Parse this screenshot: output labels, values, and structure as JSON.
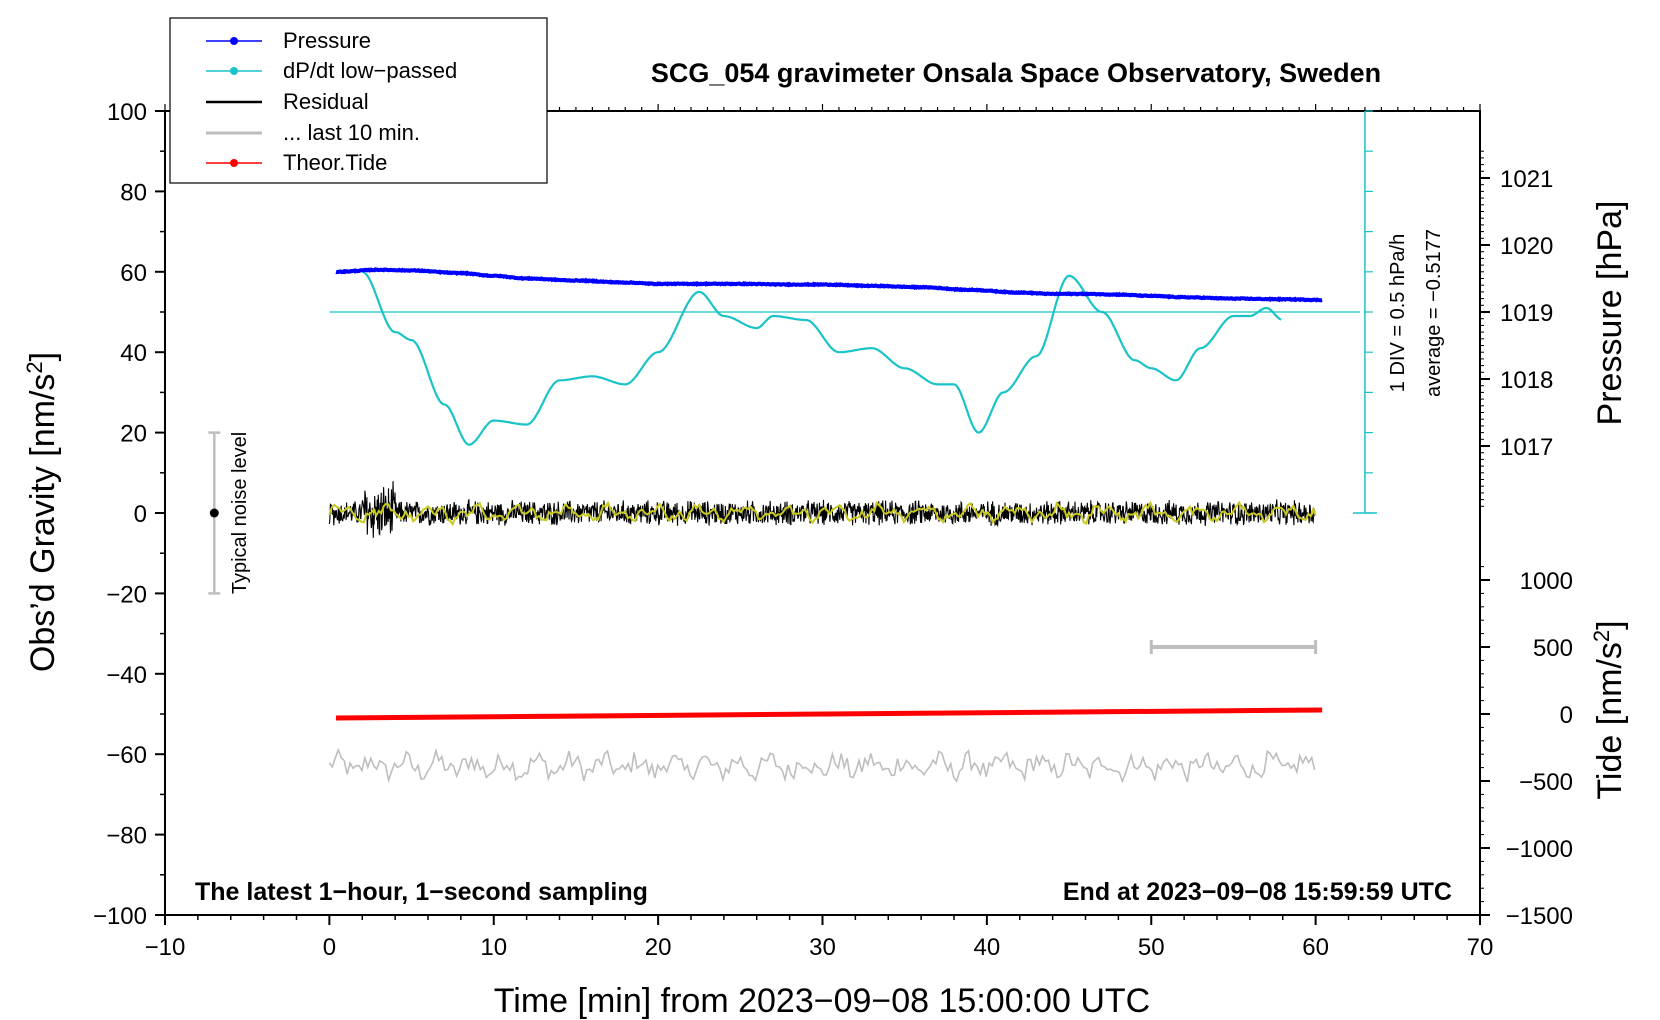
{
  "chart_data": {
    "type": "line",
    "title": "SCG_054 gravimeter Onsala Space Observatory, Sweden",
    "xlabel": "Time [min] from 2023−09−08 15:00:00 UTC",
    "ylabel": "Obs’d Gravity [nm/s²]",
    "ylabel_main": "Obs’d Gravity [nm/s",
    "ylabel_sup": "2",
    "ylabel_end": "]",
    "xlim": [
      -10,
      70
    ],
    "ylim": [
      -100,
      100
    ],
    "x_ticks": [
      -10,
      0,
      10,
      20,
      30,
      40,
      50,
      60,
      70
    ],
    "x_tick_labels": [
      "−10",
      "0",
      "10",
      "20",
      "30",
      "40",
      "50",
      "60",
      "70"
    ],
    "y_ticks": [
      100,
      80,
      60,
      40,
      20,
      0,
      -20,
      -40,
      -60,
      -80,
      -100
    ],
    "y_tick_labels": [
      "100",
      "80",
      "60",
      "40",
      "20",
      "0",
      "−20",
      "−40",
      "−60",
      "−80",
      "−100"
    ],
    "pressure_axis": {
      "label": "Pressure [hPa]",
      "ticks": [
        1021,
        1020,
        1019,
        1018,
        1017
      ],
      "tick_labels": [
        "1021",
        "1020",
        "1019",
        "1018",
        "1017"
      ]
    },
    "tide_axis": {
      "label_main": "Tide [nm/s",
      "label_sup": "2",
      "label_end": "]",
      "ticks": [
        1000,
        500,
        0,
        -500,
        -1000,
        -1500
      ],
      "tick_labels": [
        "1000",
        "500",
        "0",
        "−500",
        "−1000",
        "−1500"
      ]
    },
    "series": [
      {
        "name": "Pressure",
        "color": "#0000ff",
        "units": "hPa",
        "x": [
          0.4,
          3,
          5,
          8,
          10,
          12,
          15,
          18,
          20,
          22,
          25,
          28,
          30,
          33,
          36,
          39,
          42,
          44,
          46,
          48,
          50,
          52,
          55,
          58,
          60.4
        ],
        "values": [
          1019.6,
          1019.63,
          1019.62,
          1019.58,
          1019.54,
          1019.5,
          1019.47,
          1019.44,
          1019.42,
          1019.42,
          1019.42,
          1019.41,
          1019.41,
          1019.39,
          1019.37,
          1019.33,
          1019.29,
          1019.27,
          1019.27,
          1019.26,
          1019.24,
          1019.22,
          1019.2,
          1019.19,
          1019.18
        ]
      },
      {
        "name": "dP/dt low−passed",
        "color": "#19c3c8",
        "units": "nm/s² (plotted)",
        "x": [
          2,
          4,
          5,
          7,
          8.5,
          10,
          12,
          14,
          16,
          18,
          20,
          22.5,
          24,
          26,
          27,
          29,
          31,
          33,
          35,
          37,
          38,
          39.5,
          41,
          43,
          45,
          47,
          49,
          50,
          51.5,
          53,
          55,
          56,
          57,
          58
        ],
        "values": [
          60,
          45,
          43,
          27,
          17,
          23,
          22,
          33,
          34,
          32,
          40,
          55,
          49,
          46,
          49,
          48,
          40,
          41,
          36,
          32,
          32,
          20,
          30,
          39,
          59,
          50,
          38,
          36,
          33,
          41,
          49,
          49,
          51,
          48
        ]
      },
      {
        "name": "Residual",
        "color": "#000000",
        "units": "nm/s²",
        "x_range": [
          0,
          60
        ],
        "values_range": [
          -9,
          9
        ]
      },
      {
        "name": "... last 10 min.",
        "color": "#bebebe",
        "units": "nm/s²",
        "x_range": [
          0,
          60
        ],
        "center": -63,
        "values_range": [
          -67,
          -57
        ]
      },
      {
        "name": "Theor.Tide",
        "color": "#ff0000",
        "units": "nm/s² (tide axis)",
        "x": [
          0.4,
          60.4
        ],
        "values": [
          -30,
          30
        ]
      }
    ],
    "legend": {
      "position": "top-left",
      "entries": [
        {
          "label": "Pressure",
          "color": "#0000ff",
          "style": "line-dot"
        },
        {
          "label": "dP/dt low−passed",
          "color": "#19c3c8",
          "style": "line-dot"
        },
        {
          "label": "Residual",
          "color": "#000000",
          "style": "line"
        },
        {
          "label": "... last 10 min.",
          "color": "#bebebe",
          "style": "line"
        },
        {
          "label": "Theor.Tide",
          "color": "#ff0000",
          "style": "line-dot"
        }
      ]
    },
    "dpdt_scale": {
      "label1": "1 DIV = 0.5 hPa/h",
      "label2": "average = −0.5177",
      "reference_value": 50
    },
    "noise_bar": {
      "label": "Typical noise level",
      "x": -7,
      "range": [
        -20,
        20
      ]
    },
    "last10_bar": {
      "x_range": [
        50,
        60
      ]
    },
    "annotation_left": "The latest 1−hour, 1−second sampling",
    "annotation_right": "End at 2023−09−08 15:59:59 UTC",
    "grid": false
  }
}
